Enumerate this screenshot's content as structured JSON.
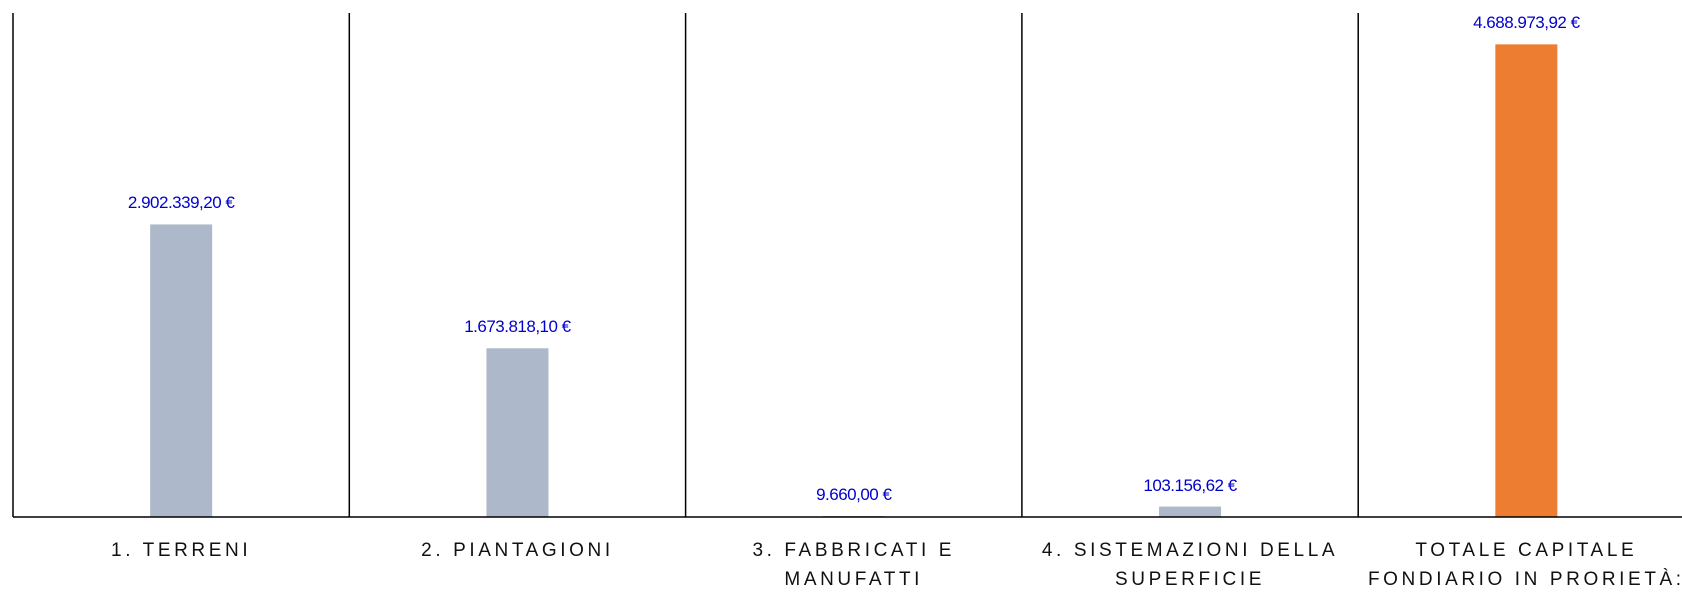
{
  "chart_data": {
    "type": "bar",
    "categories": [
      "1. TERRENI",
      "2. PIANTAGIONI",
      "3. FABBRICATI E MANUFATTI",
      "4. SISTEMAZIONI DELLA SUPERFICIE",
      "TOTALE CAPITALE FONDIARIO IN PRORIETÀ:"
    ],
    "values": [
      2902339.2,
      1673818.1,
      9660.0,
      103156.62,
      4688973.92
    ],
    "value_labels": [
      "2.902.339,20 €",
      "1.673.818,10 €",
      "9.660,00 €",
      "103.156,62 €",
      "4.688.973,92 €"
    ],
    "colors": [
      "#adb9ca",
      "#adb9ca",
      "#adb9ca",
      "#adb9ca",
      "#ed7d31"
    ],
    "ylim": [
      0,
      5000000
    ]
  }
}
